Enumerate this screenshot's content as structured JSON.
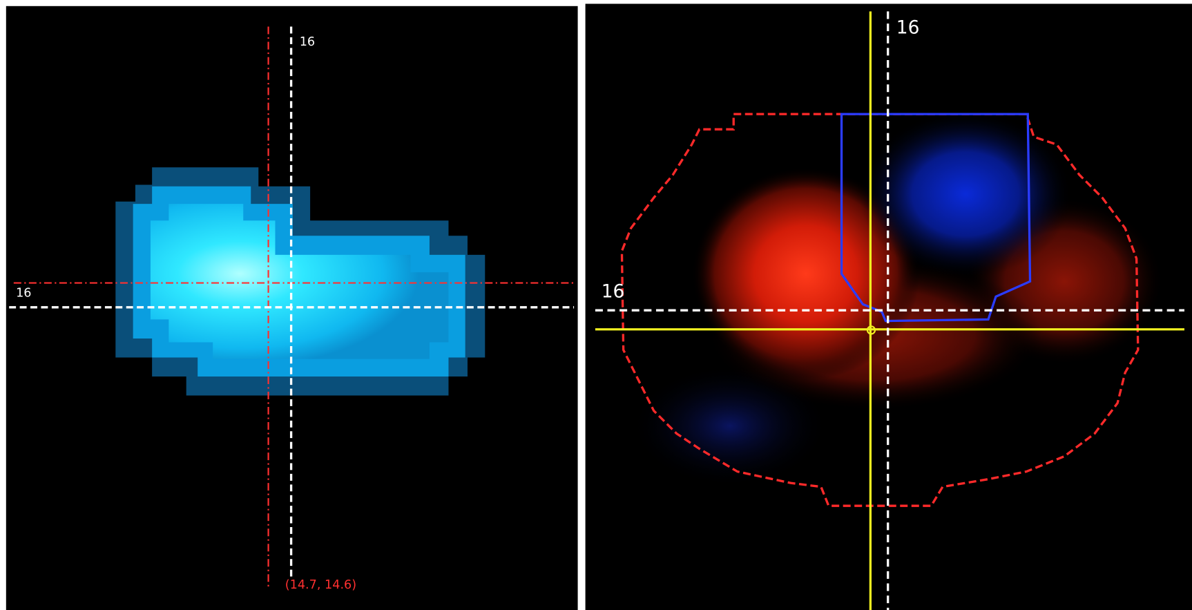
{
  "left_panel": {
    "vertical_label": "16",
    "horizontal_label": "16",
    "coordinates": "(14.7, 14.6)"
  },
  "right_panel": {
    "vertical_label": "16",
    "horizontal_label": "16"
  }
}
